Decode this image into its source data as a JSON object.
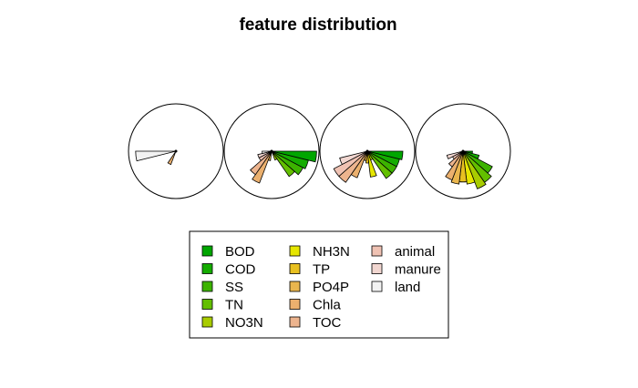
{
  "chart_data": {
    "type": "star",
    "title": "feature distribution",
    "variables": [
      "BOD",
      "COD",
      "SS",
      "TN",
      "NO3N",
      "NH3N",
      "TP",
      "PO4P",
      "Chla",
      "TOC",
      "animal",
      "manure",
      "land"
    ],
    "colors": [
      "#00A600",
      "#14AC00",
      "#3CB300",
      "#63BF00",
      "#A8CC00",
      "#E6E600",
      "#E8C020",
      "#EAB64E",
      "#EBB06E",
      "#EDB48E",
      "#EFC2B3",
      "#F1D6D0",
      "#F2F2F2"
    ],
    "segment_range_degrees": [
      0,
      180
    ],
    "stars": [
      {
        "name": "",
        "values": [
          0,
          0,
          0,
          0,
          0,
          0,
          0,
          0,
          0.3,
          0,
          0,
          0,
          0.85
        ]
      },
      {
        "name": "",
        "values": [
          0.95,
          0.8,
          0.75,
          0.65,
          0.2,
          0.0,
          0.0,
          0.2,
          0.72,
          0.6,
          0.3,
          0.3,
          0.2
        ]
      },
      {
        "name": "",
        "values": [
          0.75,
          0.7,
          0.7,
          0.7,
          0.2,
          0.55,
          0.25,
          0.2,
          0.6,
          0.8,
          0.8,
          0.6,
          0.0
        ]
      },
      {
        "name": "",
        "values": [
          0.2,
          0.35,
          0.7,
          0.8,
          0.85,
          0.7,
          0.65,
          0.7,
          0.65,
          0.4,
          0.25,
          0.35,
          0.0
        ]
      }
    ],
    "legend_position": "bottom",
    "legend_entries": [
      "BOD",
      "COD",
      "SS",
      "TN",
      "NO3N",
      "NH3N",
      "TP",
      "PO4P",
      "Chla",
      "TOC",
      "animal",
      "manure",
      "land"
    ]
  }
}
